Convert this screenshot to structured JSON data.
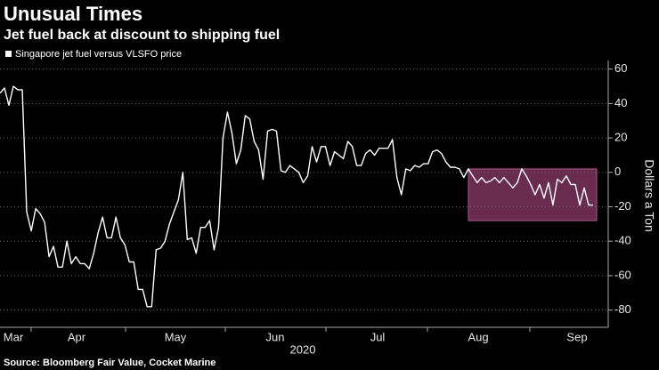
{
  "chart_data": {
    "type": "line",
    "title": "Unusual Times",
    "subtitle": "Jet fuel back at discount to shipping fuel",
    "source": "Source: Bloomberg Fair Value, Cocket Marine",
    "y_axis_label": "Dollars a Ton",
    "x_month_labels": [
      "Mar",
      "Apr",
      "May",
      "Jun",
      "Jul",
      "Aug",
      "Sep"
    ],
    "x_year_label": "2020",
    "series": [
      {
        "name": "Singapore jet fuel versus VLSFO price",
        "color": "#ffffff",
        "values": [
          46,
          49,
          39,
          50,
          48,
          48,
          -23,
          -34,
          -21,
          -24,
          -29,
          -49,
          -43,
          -55,
          -55,
          -40,
          -53,
          -49,
          -53,
          -53,
          -56,
          -47,
          -35,
          -26,
          -38,
          -38,
          -26,
          -38,
          -42,
          -52,
          -52,
          -68,
          -68,
          -78,
          -78,
          -45,
          -44,
          -40,
          -30,
          -23,
          -16,
          0,
          -39,
          -38,
          -47,
          -32,
          -32,
          -28,
          -45,
          -32,
          20,
          35,
          23,
          5,
          13,
          33,
          31,
          18,
          13,
          -4,
          24,
          25,
          24,
          1,
          0,
          4,
          2,
          0,
          -6,
          -2,
          15,
          6,
          15,
          15,
          4,
          12,
          10,
          8,
          18,
          15,
          4,
          4,
          11,
          13,
          10,
          14,
          14,
          14,
          19,
          -3,
          -13,
          2,
          1,
          4,
          3,
          5,
          5,
          12,
          13,
          11,
          6,
          3,
          3,
          2,
          -3,
          2,
          -2,
          -6,
          -3,
          -6,
          -5,
          -3,
          -6,
          -3,
          -6,
          -9,
          -6,
          2,
          -2,
          -7,
          -13,
          -7,
          -15,
          -6,
          -19,
          -4,
          -6,
          -2,
          -7,
          -7,
          -19,
          -9,
          -19,
          -19
        ]
      }
    ],
    "highlight": {
      "ylim": [
        -28,
        2
      ],
      "color": "#c0508f"
    },
    "ylim": [
      -90,
      65
    ],
    "yticks": [
      -80,
      -60,
      -40,
      -20,
      0,
      20,
      40,
      60
    ],
    "grid": true
  }
}
